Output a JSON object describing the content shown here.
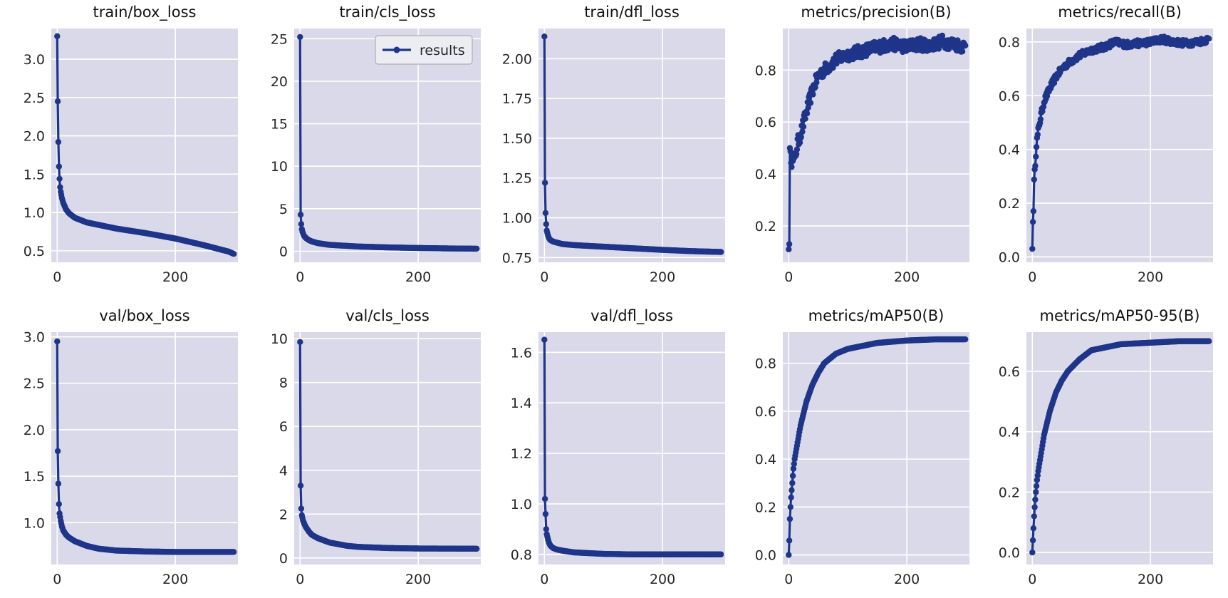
{
  "colors": {
    "plot_bg": "#d9d9e9",
    "grid": "#ffffff",
    "series": "#1f3589",
    "legend_border": "#b0b0b0",
    "legend_bg": "#ececf3"
  },
  "chart_data": [
    {
      "type": "line",
      "title": "train/box_loss",
      "xlabel": "",
      "ylabel": "",
      "xlim": [
        -10,
        306
      ],
      "ylim": [
        0.35,
        3.4
      ],
      "xticks": [
        0,
        200
      ],
      "yticks": [
        0.5,
        1.0,
        1.5,
        2.0,
        2.5,
        3.0
      ],
      "ytick_labels": [
        "0.5",
        "1.0",
        "1.5",
        "2.0",
        "2.5",
        "3.0"
      ],
      "series": [
        {
          "name": "",
          "key_points": [
            [
              0,
              3.3
            ],
            [
              1,
              2.45
            ],
            [
              2,
              1.92
            ],
            [
              3,
              1.6
            ],
            [
              4,
              1.44
            ],
            [
              5,
              1.33
            ],
            [
              6,
              1.27
            ],
            [
              8,
              1.19
            ],
            [
              10,
              1.13
            ],
            [
              15,
              1.04
            ],
            [
              20,
              0.99
            ],
            [
              30,
              0.93
            ],
            [
              50,
              0.87
            ],
            [
              100,
              0.79
            ],
            [
              150,
              0.73
            ],
            [
              200,
              0.66
            ],
            [
              250,
              0.57
            ],
            [
              290,
              0.49
            ],
            [
              299,
              0.46
            ]
          ]
        }
      ]
    },
    {
      "type": "line",
      "title": "train/cls_loss",
      "xlabel": "",
      "ylabel": "",
      "xlim": [
        -10,
        306
      ],
      "ylim": [
        -1.3,
        26.2
      ],
      "xticks": [
        0,
        200
      ],
      "yticks": [
        0,
        5,
        10,
        15,
        20,
        25
      ],
      "ytick_labels": [
        "0",
        "5",
        "10",
        "15",
        "20",
        "25"
      ],
      "legend": {
        "label": "results",
        "position": "top-right"
      },
      "series": [
        {
          "name": "results",
          "key_points": [
            [
              0,
              25.2
            ],
            [
              1,
              4.3
            ],
            [
              2,
              3.2
            ],
            [
              3,
              2.6
            ],
            [
              4,
              2.3
            ],
            [
              6,
              1.9
            ],
            [
              8,
              1.7
            ],
            [
              10,
              1.55
            ],
            [
              15,
              1.3
            ],
            [
              20,
              1.15
            ],
            [
              30,
              0.95
            ],
            [
              50,
              0.75
            ],
            [
              100,
              0.55
            ],
            [
              150,
              0.45
            ],
            [
              200,
              0.38
            ],
            [
              250,
              0.33
            ],
            [
              299,
              0.3
            ]
          ]
        }
      ]
    },
    {
      "type": "line",
      "title": "train/dfl_loss",
      "xlabel": "",
      "ylabel": "",
      "xlim": [
        -10,
        306
      ],
      "ylim": [
        0.72,
        2.19
      ],
      "xticks": [
        0,
        200
      ],
      "yticks": [
        0.75,
        1.0,
        1.25,
        1.5,
        1.75,
        2.0
      ],
      "ytick_labels": [
        "0.75",
        "1.00",
        "1.25",
        "1.50",
        "1.75",
        "2.00"
      ],
      "series": [
        {
          "name": "",
          "key_points": [
            [
              0,
              2.14
            ],
            [
              1,
              1.22
            ],
            [
              2,
              1.03
            ],
            [
              3,
              0.96
            ],
            [
              4,
              0.92
            ],
            [
              6,
              0.89
            ],
            [
              8,
              0.87
            ],
            [
              10,
              0.86
            ],
            [
              15,
              0.85
            ],
            [
              20,
              0.845
            ],
            [
              30,
              0.835
            ],
            [
              50,
              0.828
            ],
            [
              100,
              0.818
            ],
            [
              150,
              0.808
            ],
            [
              200,
              0.798
            ],
            [
              250,
              0.79
            ],
            [
              299,
              0.785
            ]
          ]
        }
      ]
    },
    {
      "type": "line",
      "title": "metrics/precision(B)",
      "xlabel": "",
      "ylabel": "",
      "xlim": [
        -10,
        306
      ],
      "ylim": [
        0.06,
        0.96
      ],
      "xticks": [
        0,
        200
      ],
      "yticks": [
        0.2,
        0.4,
        0.6,
        0.8
      ],
      "ytick_labels": [
        "0.2",
        "0.4",
        "0.6",
        "0.8"
      ],
      "series": [
        {
          "name": "",
          "noise": 0.025,
          "key_points": [
            [
              0,
              0.11
            ],
            [
              1,
              0.13
            ],
            [
              2,
              0.52
            ],
            [
              4,
              0.42
            ],
            [
              6,
              0.48
            ],
            [
              10,
              0.45
            ],
            [
              15,
              0.52
            ],
            [
              20,
              0.55
            ],
            [
              30,
              0.64
            ],
            [
              40,
              0.72
            ],
            [
              50,
              0.78
            ],
            [
              60,
              0.8
            ],
            [
              80,
              0.84
            ],
            [
              100,
              0.86
            ],
            [
              120,
              0.87
            ],
            [
              150,
              0.89
            ],
            [
              180,
              0.9
            ],
            [
              200,
              0.89
            ],
            [
              220,
              0.9
            ],
            [
              240,
              0.895
            ],
            [
              260,
              0.91
            ],
            [
              280,
              0.9
            ],
            [
              299,
              0.89
            ]
          ]
        }
      ]
    },
    {
      "type": "line",
      "title": "metrics/recall(B)",
      "xlabel": "",
      "ylabel": "",
      "xlim": [
        -10,
        306
      ],
      "ylim": [
        -0.02,
        0.85
      ],
      "xticks": [
        0,
        200
      ],
      "yticks": [
        0.0,
        0.2,
        0.4,
        0.6,
        0.8
      ],
      "ytick_labels": [
        "0.0",
        "0.2",
        "0.4",
        "0.6",
        "0.8"
      ],
      "series": [
        {
          "name": "",
          "noise": 0.012,
          "key_points": [
            [
              0,
              0.03
            ],
            [
              1,
              0.13
            ],
            [
              2,
              0.18
            ],
            [
              3,
              0.28
            ],
            [
              5,
              0.35
            ],
            [
              7,
              0.42
            ],
            [
              10,
              0.47
            ],
            [
              15,
              0.53
            ],
            [
              20,
              0.58
            ],
            [
              30,
              0.63
            ],
            [
              40,
              0.67
            ],
            [
              50,
              0.7
            ],
            [
              60,
              0.72
            ],
            [
              80,
              0.75
            ],
            [
              100,
              0.77
            ],
            [
              120,
              0.78
            ],
            [
              140,
              0.8
            ],
            [
              160,
              0.79
            ],
            [
              180,
              0.795
            ],
            [
              200,
              0.8
            ],
            [
              220,
              0.81
            ],
            [
              240,
              0.8
            ],
            [
              260,
              0.795
            ],
            [
              280,
              0.8
            ],
            [
              299,
              0.81
            ]
          ]
        }
      ]
    },
    {
      "type": "line",
      "title": "val/box_loss",
      "xlabel": "",
      "ylabel": "",
      "xlim": [
        -10,
        306
      ],
      "ylim": [
        0.55,
        3.05
      ],
      "xticks": [
        0,
        200
      ],
      "yticks": [
        1.0,
        1.5,
        2.0,
        2.5,
        3.0
      ],
      "ytick_labels": [
        "1.0",
        "1.5",
        "2.0",
        "2.5",
        "3.0"
      ],
      "series": [
        {
          "name": "",
          "key_points": [
            [
              0,
              2.95
            ],
            [
              1,
              1.77
            ],
            [
              2,
              1.42
            ],
            [
              3,
              1.2
            ],
            [
              4,
              1.1
            ],
            [
              6,
              1.02
            ],
            [
              8,
              0.96
            ],
            [
              10,
              0.92
            ],
            [
              15,
              0.87
            ],
            [
              20,
              0.84
            ],
            [
              30,
              0.8
            ],
            [
              50,
              0.75
            ],
            [
              70,
              0.72
            ],
            [
              100,
              0.7
            ],
            [
              150,
              0.69
            ],
            [
              200,
              0.685
            ],
            [
              299,
              0.685
            ]
          ]
        }
      ]
    },
    {
      "type": "line",
      "title": "val/cls_loss",
      "xlabel": "",
      "ylabel": "",
      "xlim": [
        -10,
        306
      ],
      "ylim": [
        -0.3,
        10.3
      ],
      "xticks": [
        0,
        200
      ],
      "yticks": [
        0,
        2,
        4,
        6,
        8,
        10
      ],
      "ytick_labels": [
        "0",
        "2",
        "4",
        "6",
        "8",
        "10"
      ],
      "series": [
        {
          "name": "",
          "key_points": [
            [
              0,
              9.85
            ],
            [
              1,
              3.3
            ],
            [
              2,
              2.25
            ],
            [
              3,
              1.95
            ],
            [
              5,
              1.7
            ],
            [
              8,
              1.5
            ],
            [
              10,
              1.4
            ],
            [
              15,
              1.2
            ],
            [
              20,
              1.05
            ],
            [
              30,
              0.9
            ],
            [
              50,
              0.7
            ],
            [
              80,
              0.55
            ],
            [
              100,
              0.5
            ],
            [
              150,
              0.45
            ],
            [
              200,
              0.43
            ],
            [
              299,
              0.42
            ]
          ]
        }
      ]
    },
    {
      "type": "line",
      "title": "val/dfl_loss",
      "xlabel": "",
      "ylabel": "",
      "xlim": [
        -10,
        306
      ],
      "ylim": [
        0.76,
        1.68
      ],
      "xticks": [
        0,
        200
      ],
      "yticks": [
        0.8,
        1.0,
        1.2,
        1.4,
        1.6
      ],
      "ytick_labels": [
        "0.8",
        "1.0",
        "1.2",
        "1.4",
        "1.6"
      ],
      "series": [
        {
          "name": "",
          "key_points": [
            [
              0,
              1.65
            ],
            [
              1,
              1.02
            ],
            [
              2,
              0.96
            ],
            [
              3,
              0.9
            ],
            [
              4,
              0.88
            ],
            [
              6,
              0.86
            ],
            [
              8,
              0.845
            ],
            [
              10,
              0.835
            ],
            [
              15,
              0.825
            ],
            [
              20,
              0.82
            ],
            [
              30,
              0.815
            ],
            [
              50,
              0.808
            ],
            [
              100,
              0.802
            ],
            [
              150,
              0.8
            ],
            [
              200,
              0.8
            ],
            [
              299,
              0.8
            ]
          ]
        }
      ]
    },
    {
      "type": "line",
      "title": "metrics/mAP50(B)",
      "xlabel": "",
      "ylabel": "",
      "xlim": [
        -10,
        306
      ],
      "ylim": [
        -0.04,
        0.93
      ],
      "xticks": [
        0,
        200
      ],
      "yticks": [
        0.0,
        0.2,
        0.4,
        0.6,
        0.8
      ],
      "ytick_labels": [
        "0.0",
        "0.2",
        "0.4",
        "0.6",
        "0.8"
      ],
      "series": [
        {
          "name": "",
          "key_points": [
            [
              0,
              0.0
            ],
            [
              1,
              0.06
            ],
            [
              2,
              0.15
            ],
            [
              3,
              0.2
            ],
            [
              4,
              0.24
            ],
            [
              6,
              0.3
            ],
            [
              8,
              0.36
            ],
            [
              10,
              0.4
            ],
            [
              15,
              0.47
            ],
            [
              20,
              0.54
            ],
            [
              30,
              0.64
            ],
            [
              40,
              0.71
            ],
            [
              50,
              0.76
            ],
            [
              60,
              0.8
            ],
            [
              80,
              0.84
            ],
            [
              100,
              0.86
            ],
            [
              150,
              0.885
            ],
            [
              200,
              0.895
            ],
            [
              250,
              0.9
            ],
            [
              299,
              0.9
            ]
          ]
        }
      ]
    },
    {
      "type": "line",
      "title": "metrics/mAP50-95(B)",
      "xlabel": "",
      "ylabel": "",
      "xlim": [
        -10,
        306
      ],
      "ylim": [
        -0.04,
        0.73
      ],
      "xticks": [
        0,
        200
      ],
      "yticks": [
        0.0,
        0.2,
        0.4,
        0.6
      ],
      "ytick_labels": [
        "0.0",
        "0.2",
        "0.4",
        "0.6"
      ],
      "series": [
        {
          "name": "",
          "key_points": [
            [
              0,
              0.0
            ],
            [
              1,
              0.04
            ],
            [
              2,
              0.08
            ],
            [
              3,
              0.12
            ],
            [
              4,
              0.15
            ],
            [
              6,
              0.2
            ],
            [
              8,
              0.24
            ],
            [
              10,
              0.27
            ],
            [
              15,
              0.33
            ],
            [
              20,
              0.39
            ],
            [
              30,
              0.47
            ],
            [
              40,
              0.53
            ],
            [
              50,
              0.57
            ],
            [
              60,
              0.6
            ],
            [
              80,
              0.64
            ],
            [
              100,
              0.67
            ],
            [
              150,
              0.69
            ],
            [
              200,
              0.695
            ],
            [
              250,
              0.7
            ],
            [
              299,
              0.7
            ]
          ]
        }
      ]
    }
  ]
}
